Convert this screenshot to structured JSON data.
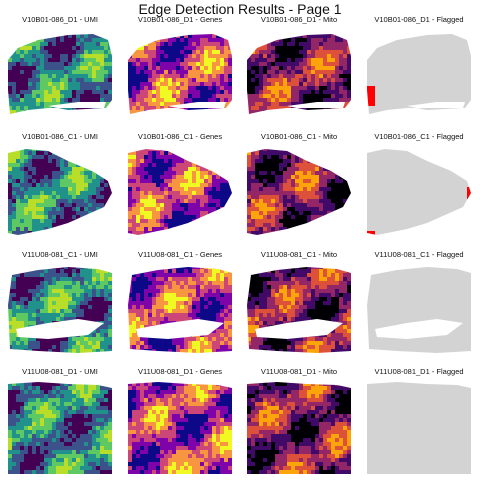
{
  "title": "Edge Detection Results - Page 1",
  "chart_data": {
    "type": "heatmap",
    "title": "Edge Detection Results - Page 1",
    "layout": "4 rows x 4 columns",
    "metrics": [
      "UMI",
      "Genes",
      "Mito",
      "Flagged"
    ],
    "colormaps": {
      "UMI": "viridis",
      "Genes": "plasma",
      "Mito": "inferno",
      "Flagged": "grey with red flags"
    },
    "colors": {
      "unflagged": "#d3d3d3",
      "flagged": "#ff0000"
    },
    "samples": [
      {
        "id": "V10B01-086_D1",
        "panels": [
          "V10B01-086_D1 - UMI",
          "V10B01-086_D1 - Genes",
          "V10B01-086_D1 - Mito",
          "V10B01-086_D1 - Flagged"
        ],
        "flagged_spots": "few, left edge"
      },
      {
        "id": "V10B01-086_C1",
        "panels": [
          "V10B01-086_C1 - UMI",
          "V10B01-086_C1 - Genes",
          "V10B01-086_C1 - Mito",
          "V10B01-086_C1 - Flagged"
        ],
        "flagged_spots": "few, right edge and bottom-left corner"
      },
      {
        "id": "V11U08-081_C1",
        "panels": [
          "V11U08-081_C1 - UMI",
          "V11U08-081_C1 - Genes",
          "V11U08-081_C1 - Mito",
          "V11U08-081_C1 - Flagged"
        ],
        "flagged_spots": "none"
      },
      {
        "id": "V11U08-081_D1",
        "panels": [
          "V11U08-081_D1 - UMI",
          "V11U08-081_D1 - Genes",
          "V11U08-081_D1 - Mito",
          "V11U08-081_D1 - Flagged"
        ],
        "flagged_spots": "none"
      }
    ]
  }
}
